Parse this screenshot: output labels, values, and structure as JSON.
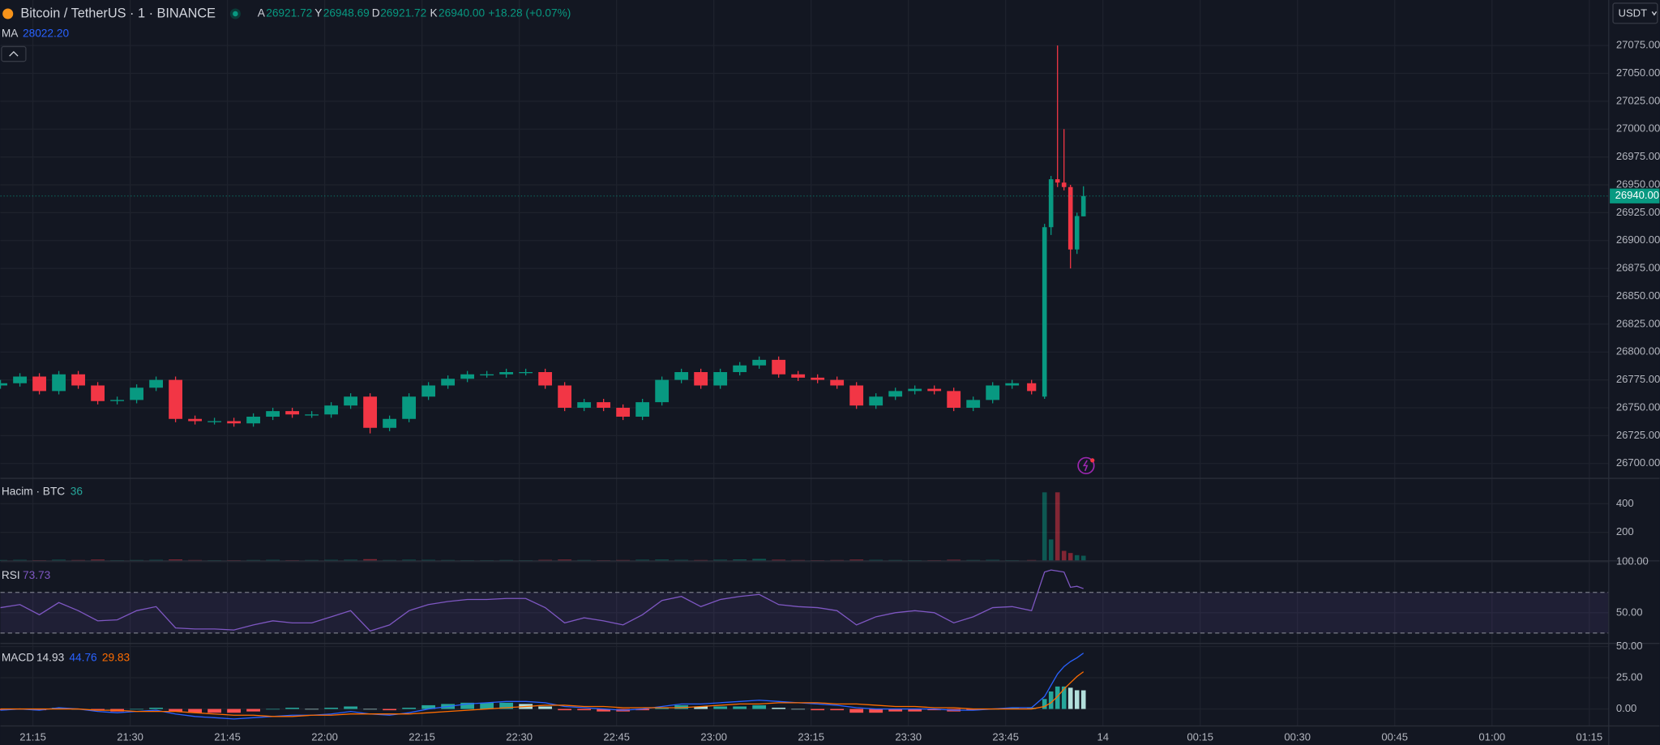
{
  "chart_data": [
    {
      "type": "candlestick",
      "title": "Bitcoin / TetherUS · 1 · BINANCE",
      "legend_items": [
        {
          "label": "A",
          "value": "26921.72"
        },
        {
          "label": "Y",
          "value": "26948.69"
        },
        {
          "label": "D",
          "value": "26921.72"
        },
        {
          "label": "K",
          "value": "26940.00"
        }
      ],
      "change": "+18.28 (+0.07%)",
      "ma": {
        "name": "MA",
        "value": "28022.20"
      },
      "currency": "USDT",
      "last_price_label": "26940.00",
      "up_color": "#089981",
      "down_color": "#f23645",
      "x": [
        1270,
        1273,
        1276,
        1279,
        1282,
        1285,
        1288,
        1291,
        1294,
        1297,
        1300,
        1303,
        1306,
        1309,
        1312,
        1315,
        1318,
        1321,
        1324,
        1327,
        1330,
        1333,
        1336,
        1339,
        1342,
        1345,
        1348,
        1351,
        1354,
        1357,
        1360,
        1363,
        1366,
        1369,
        1372,
        1375,
        1378,
        1381,
        1384,
        1387,
        1390,
        1393,
        1396,
        1399,
        1402,
        1405,
        1408,
        1411,
        1414,
        1417,
        1420,
        1423,
        1426,
        1429,
        1431,
        1432,
        1433,
        1434,
        1435,
        1436,
        1437
      ],
      "open": [
        26770,
        26772,
        26778,
        26765,
        26780,
        26770,
        26756,
        26757,
        26768,
        26775,
        26740,
        26738,
        26738,
        26736,
        26742,
        26747,
        26744,
        26744,
        26752,
        26760,
        26732,
        26740,
        26760,
        26770,
        26776,
        26780,
        26780,
        26782,
        26782,
        26770,
        26750,
        26755,
        26750,
        26742,
        26755,
        26775,
        26782,
        26770,
        26782,
        26788,
        26793,
        26780,
        26777,
        26775,
        26770,
        26752,
        26760,
        26765,
        26767,
        26765,
        26750,
        26757,
        26770,
        26772,
        26760,
        26912,
        26955,
        26952,
        26948,
        26892,
        26921.72
      ],
      "high": [
        26775,
        26781,
        26781,
        26783,
        26783,
        26773,
        26760,
        26771,
        26778,
        26778,
        26743,
        26741,
        26741,
        26745,
        26750,
        26750,
        26747,
        26755,
        26763,
        26763,
        26743,
        26763,
        26773,
        26779,
        26783,
        26783,
        26785,
        26785,
        26785,
        26773,
        26758,
        26758,
        26753,
        26758,
        26778,
        26785,
        26785,
        26785,
        26791,
        26796,
        26796,
        26783,
        26780,
        26778,
        26773,
        26763,
        26768,
        26770,
        26770,
        26768,
        26760,
        26773,
        26775,
        26775,
        26915,
        26958,
        27075,
        27000,
        26950,
        26925,
        26948.69
      ],
      "low": [
        26767,
        26769,
        26762,
        26762,
        26767,
        26753,
        26753,
        26754,
        26765,
        26737,
        26735,
        26735,
        26733,
        26733,
        26739,
        26741,
        26741,
        26741,
        26749,
        26727,
        26729,
        26737,
        26757,
        26767,
        26773,
        26777,
        26777,
        26779,
        26767,
        26747,
        26747,
        26747,
        26739,
        26739,
        26752,
        26772,
        26767,
        26767,
        26779,
        26785,
        26777,
        26774,
        26772,
        26767,
        26749,
        26749,
        26757,
        26762,
        26762,
        26747,
        26747,
        26754,
        26767,
        26762,
        26758,
        26905,
        26948,
        26945,
        26875,
        26888,
        26921.72
      ],
      "close": [
        26772,
        26778,
        26765,
        26780,
        26770,
        26756,
        26757,
        26768,
        26775,
        26740,
        26738,
        26738,
        26736,
        26742,
        26747,
        26744,
        26744,
        26752,
        26760,
        26732,
        26740,
        26760,
        26770,
        26776,
        26780,
        26780,
        26782,
        26782,
        26770,
        26750,
        26755,
        26750,
        26742,
        26755,
        26775,
        26782,
        26770,
        26782,
        26788,
        26793,
        26780,
        26777,
        26775,
        26770,
        26752,
        26760,
        26765,
        26767,
        26765,
        26750,
        26757,
        26770,
        26772,
        26765,
        26912,
        26955,
        26952,
        26948,
        26892,
        26922,
        26940
      ],
      "xlim": [
        1270,
        1518
      ],
      "xticks": [
        {
          "value": 1275,
          "label": "21:15"
        },
        {
          "value": 1290,
          "label": "21:30"
        },
        {
          "value": 1305,
          "label": "21:45"
        },
        {
          "value": 1320,
          "label": "22:00"
        },
        {
          "value": 1335,
          "label": "22:15"
        },
        {
          "value": 1350,
          "label": "22:30"
        },
        {
          "value": 1365,
          "label": "22:45"
        },
        {
          "value": 1380,
          "label": "23:00"
        },
        {
          "value": 1395,
          "label": "23:15"
        },
        {
          "value": 1410,
          "label": "23:30"
        },
        {
          "value": 1425,
          "label": "23:45"
        },
        {
          "value": 1440,
          "label": "14"
        },
        {
          "value": 1455,
          "label": "00:15"
        },
        {
          "value": 1470,
          "label": "00:30"
        },
        {
          "value": 1485,
          "label": "00:45"
        },
        {
          "value": 1500,
          "label": "01:00"
        },
        {
          "value": 1515,
          "label": "01:15"
        }
      ],
      "ylim": [
        26686.7,
        27115.8
      ],
      "yticks": [
        {
          "value": 26700,
          "label": "26700.00"
        },
        {
          "value": 26725,
          "label": "26725.00"
        },
        {
          "value": 26750,
          "label": "26750.00"
        },
        {
          "value": 26775,
          "label": "26775.00"
        },
        {
          "value": 26800,
          "label": "26800.00"
        },
        {
          "value": 26825,
          "label": "26825.00"
        },
        {
          "value": 26850,
          "label": "26850.00"
        },
        {
          "value": 26875,
          "label": "26875.00"
        },
        {
          "value": 26900,
          "label": "26900.00"
        },
        {
          "value": 26925,
          "label": "26925.00"
        },
        {
          "value": 26950,
          "label": "26950.00"
        },
        {
          "value": 26975,
          "label": "26975.00"
        },
        {
          "value": 27000,
          "label": "27000.00"
        },
        {
          "value": 27025,
          "label": "27025.00"
        },
        {
          "value": 27050,
          "label": "27050.00"
        },
        {
          "value": 27075,
          "label": "27075.00"
        }
      ],
      "grid": true
    },
    {
      "type": "bar",
      "title": "Hacim · BTC",
      "last_value": "36",
      "values": [
        6,
        7,
        5,
        8,
        6,
        9,
        5,
        6,
        7,
        10,
        6,
        5,
        5,
        6,
        7,
        5,
        6,
        7,
        8,
        12,
        6,
        8,
        7,
        6,
        5,
        5,
        6,
        5,
        7,
        9,
        6,
        5,
        6,
        8,
        9,
        7,
        6,
        8,
        10,
        14,
        8,
        6,
        5,
        6,
        9,
        7,
        6,
        5,
        5,
        8,
        6,
        7,
        5,
        6,
        480,
        150,
        480,
        70,
        55,
        40,
        36
      ],
      "ylim": [
        0,
        578
      ],
      "yticks": [
        200,
        400
      ]
    },
    {
      "type": "line",
      "title": "RSI",
      "last_value": "73.73",
      "color": "#7e57c2",
      "values": [
        55,
        58,
        48,
        60,
        52,
        42,
        43,
        52,
        56,
        35,
        34,
        34,
        33,
        38,
        42,
        40,
        40,
        46,
        52,
        32,
        38,
        52,
        58,
        61,
        63,
        63,
        64,
        64,
        55,
        40,
        45,
        42,
        38,
        48,
        62,
        66,
        56,
        63,
        66,
        68,
        58,
        56,
        55,
        52,
        38,
        46,
        50,
        52,
        50,
        40,
        46,
        55,
        56,
        52,
        90,
        92,
        91,
        90,
        75,
        76,
        73.73
      ],
      "bands": [
        30,
        70
      ],
      "ylim": [
        19.8,
        101
      ],
      "yticks": [
        {
          "value": 50,
          "label": "50.00"
        },
        {
          "value": 100,
          "label": "100.00"
        }
      ]
    },
    {
      "type": "macd",
      "title": "MACD",
      "legend_values": [
        "14.93",
        "44.76",
        "29.83"
      ],
      "series": [
        {
          "color": "#26a69a",
          "values": [
            -1,
            0,
            -1,
            1,
            0,
            -1,
            -2,
            0,
            1,
            -2,
            -3,
            -3,
            -3,
            -2,
            0,
            1,
            0,
            1,
            2,
            0,
            -1,
            1,
            3,
            4,
            5,
            5,
            5,
            4,
            2,
            -1,
            -1,
            -2,
            -2,
            -1,
            1,
            3,
            2,
            2,
            2,
            3,
            1,
            0,
            -1,
            -1,
            -3,
            -3,
            -2,
            -2,
            -1,
            -2,
            -1,
            0,
            1,
            1,
            8,
            14,
            18,
            18,
            17,
            15,
            14.93
          ]
        },
        {
          "color": "#2962ff",
          "values": [
            -1,
            0,
            -1,
            1,
            0,
            -2,
            -3,
            -2,
            -1,
            -4,
            -6,
            -7,
            -8,
            -7,
            -6,
            -5,
            -5,
            -4,
            -2,
            -4,
            -5,
            -3,
            0,
            2,
            4,
            5,
            6,
            6,
            5,
            2,
            1,
            0,
            -1,
            0,
            2,
            4,
            4,
            5,
            6,
            7,
            6,
            5,
            4,
            3,
            1,
            0,
            0,
            0,
            0,
            -1,
            -1,
            0,
            1,
            1,
            10,
            19,
            28,
            34,
            38,
            41,
            44.76
          ]
        },
        {
          "color": "#ff6d00",
          "values": [
            0,
            0,
            0,
            0,
            0,
            -1,
            -1,
            -2,
            -2,
            -2,
            -3,
            -4,
            -5,
            -5,
            -6,
            -6,
            -5,
            -5,
            -4,
            -4,
            -4,
            -4,
            -3,
            -2,
            -1,
            0,
            1,
            2,
            3,
            3,
            2,
            2,
            1,
            1,
            1,
            1,
            2,
            3,
            4,
            4,
            5,
            5,
            5,
            4,
            4,
            3,
            2,
            2,
            1,
            1,
            0,
            0,
            0,
            0,
            2,
            5,
            10,
            16,
            21,
            26,
            29.83
          ]
        }
      ],
      "ylim": [
        -13.6,
        52.5
      ],
      "yticks": [
        {
          "value": 0,
          "label": "0.00"
        },
        {
          "value": 25,
          "label": "25.00"
        },
        {
          "value": 50,
          "label": "50.00"
        }
      ]
    }
  ]
}
